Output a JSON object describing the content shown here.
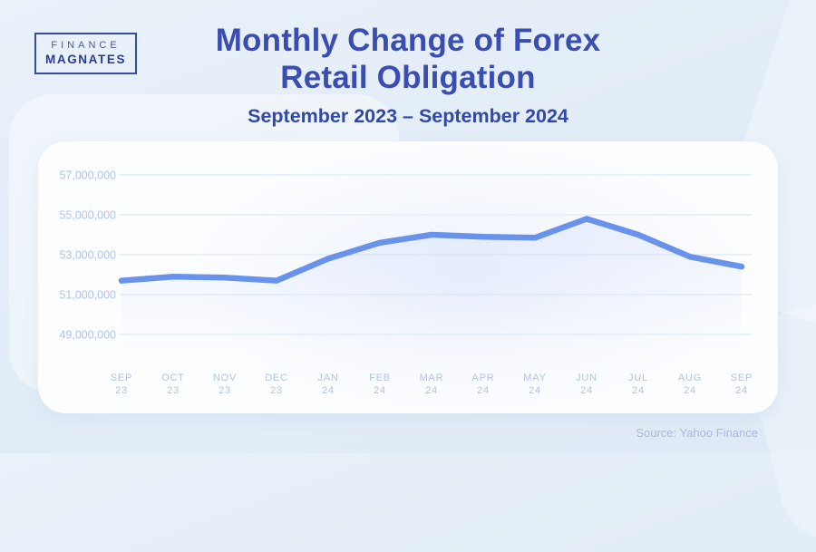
{
  "header": {
    "logo": {
      "line1": "FINANCE",
      "line2": "MAGNATES"
    },
    "title_line1": "Monthly Change of Forex",
    "title_line2": "Retail Obligation",
    "subtitle": "September 2023 – September 2024"
  },
  "footer": {
    "source": "Source: Yahoo Finance"
  },
  "colors": {
    "page_bg": "#E3EDF7",
    "card_bg": "#FCFDFF",
    "line": "#6992EB",
    "grid": "#DFE9F5",
    "axis_label": "#B0C3E8",
    "title": "#3A4DB0",
    "subtitle": "#3048A8",
    "source": "#A9B8D7"
  },
  "chart_data": {
    "type": "line",
    "title": "Monthly Change of Forex Retail Obligation",
    "subtitle": "September 2023 – September 2024",
    "categories": [
      "SEP 23",
      "OCT 23",
      "NOV 23",
      "DEC 23",
      "JAN 24",
      "FEB 24",
      "MAR 24",
      "APR 24",
      "MAY 24",
      "JUN 24",
      "JUL 24",
      "AUG 24",
      "SEP 24"
    ],
    "values": [
      51700000,
      51900000,
      51850000,
      51700000,
      52800000,
      53600000,
      54000000,
      53900000,
      53850000,
      54800000,
      54000000,
      52900000,
      52400000
    ],
    "yticks": [
      57000000,
      55000000,
      53000000,
      51000000,
      49000000
    ],
    "ylim": [
      48000000,
      58000000
    ],
    "xlabel": "",
    "ylabel": "",
    "grid": true,
    "legend": false,
    "line_width": 6.5,
    "source": "Source: Yahoo Finance"
  }
}
